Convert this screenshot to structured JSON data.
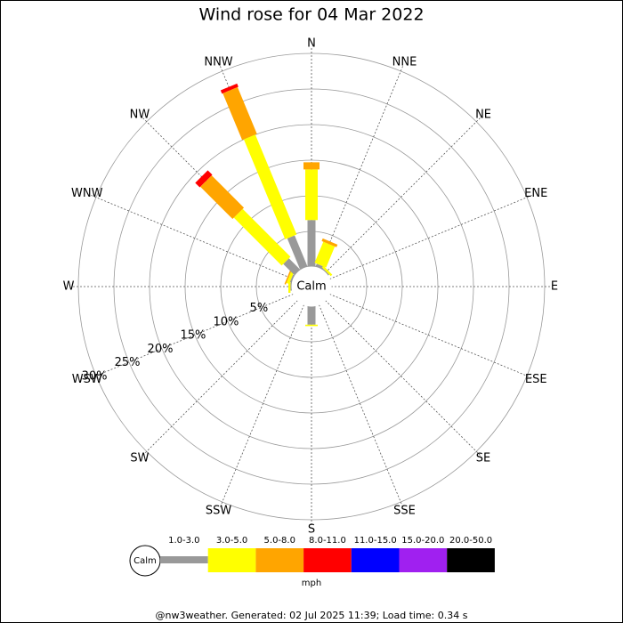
{
  "chart_data": {
    "type": "windrose",
    "title": "Wind rose for 04 Mar 2022",
    "categories": [
      "N",
      "NNE",
      "NE",
      "ENE",
      "E",
      "ESE",
      "SE",
      "SSE",
      "S",
      "SSW",
      "SW",
      "WSW",
      "W",
      "WNW",
      "NW",
      "NNW"
    ],
    "series": [
      {
        "name": "1.0-3.0",
        "color": "#999999",
        "values": [
          6.6,
          0.5,
          0.2,
          0,
          0,
          0,
          0,
          0,
          2.6,
          0,
          0,
          0,
          0.2,
          0.3,
          2.3,
          4.8
        ]
      },
      {
        "name": "3.0-5.0",
        "color": "#ffff00",
        "values": [
          7.1,
          3.2,
          0.3,
          0,
          0,
          0,
          0,
          0,
          0.2,
          0,
          0,
          0,
          0.3,
          0.4,
          9.5,
          15.2
        ]
      },
      {
        "name": "5.0-8.0",
        "color": "#ffa500",
        "values": [
          1,
          0.4,
          0,
          0,
          0,
          0,
          0,
          0,
          0,
          0,
          0,
          0,
          0,
          0.2,
          6.4,
          7.1
        ]
      },
      {
        "name": "8.0-11.0",
        "color": "#ff0000",
        "values": [
          0,
          0,
          0,
          0,
          0,
          0,
          0,
          0,
          0,
          0,
          0,
          0,
          0,
          0,
          0.9,
          0.5
        ]
      },
      {
        "name": "11.0-15.0",
        "color": "#0000ff",
        "values": [
          0,
          0,
          0,
          0,
          0,
          0,
          0,
          0,
          0,
          0,
          0,
          0,
          0,
          0,
          0,
          0
        ]
      },
      {
        "name": "15.0-20.0",
        "color": "#a020f0",
        "values": [
          0,
          0,
          0,
          0,
          0,
          0,
          0,
          0,
          0,
          0,
          0,
          0,
          0,
          0,
          0,
          0
        ]
      },
      {
        "name": "20.0-50.0",
        "color": "#000000",
        "values": [
          0,
          0,
          0,
          0,
          0,
          0,
          0,
          0,
          0,
          0,
          0,
          0,
          0,
          0,
          0,
          0
        ]
      }
    ],
    "rlim": [
      0,
      30
    ],
    "rticks": [
      {
        "value": 5,
        "label": "5%"
      },
      {
        "value": 10,
        "label": "10%"
      },
      {
        "value": 15,
        "label": "15%"
      },
      {
        "value": 20,
        "label": "20%"
      },
      {
        "value": 25,
        "label": "25%"
      },
      {
        "value": 30,
        "label": "30%"
      }
    ],
    "calm_label": "Calm",
    "legend_unit": "mph"
  },
  "footer": "@nw3weather. Generated: 02 Jul 2025 11:39; Load time: 0.34 s"
}
